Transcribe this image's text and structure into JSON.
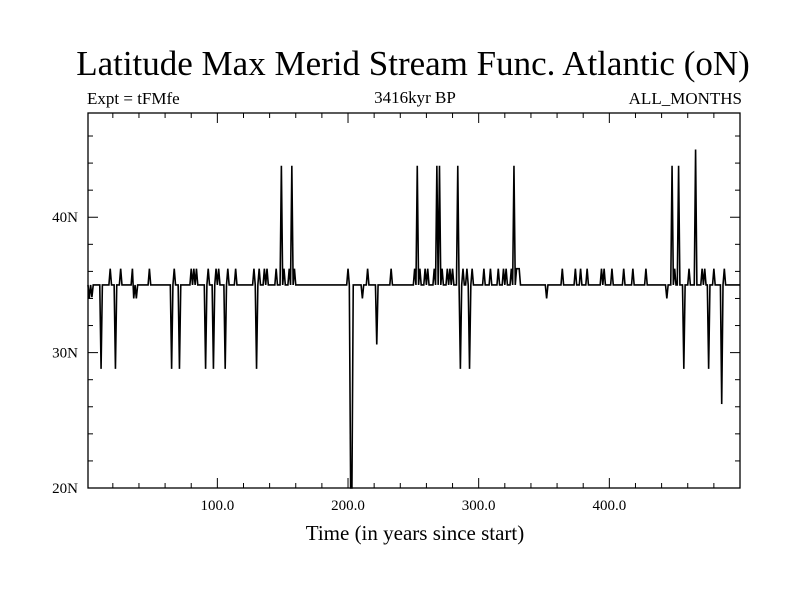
{
  "chart_data": {
    "type": "line",
    "title": "Latitude Max Merid Stream Func. Atlantic (oN)",
    "subtitle_left": "Expt = tFMfe",
    "subtitle_center": "3416kyr BP",
    "subtitle_right": "ALL_MONTHS",
    "xlabel": "Time (in years since start)",
    "ylabel": "",
    "xlim": [
      1,
      500
    ],
    "ylim": [
      20,
      47.7
    ],
    "x_ticks": [
      100,
      200,
      300,
      400
    ],
    "x_tick_labels": [
      "100.0",
      "200.0",
      "300.0",
      "400.0"
    ],
    "y_ticks": [
      20,
      30,
      40
    ],
    "y_tick_labels": [
      "20N",
      "30N",
      "40N"
    ],
    "grid": false,
    "color": "#000000",
    "baseline": 35,
    "series": [
      {
        "points": [
          [
            1,
            35
          ],
          [
            2,
            34
          ],
          [
            3,
            35
          ],
          [
            4,
            34.1
          ],
          [
            5,
            35
          ],
          [
            10,
            35
          ],
          [
            11,
            28.8
          ],
          [
            12,
            35
          ],
          [
            17,
            35
          ],
          [
            18,
            36.2
          ],
          [
            19,
            35
          ],
          [
            21,
            35
          ],
          [
            22,
            28.8
          ],
          [
            23,
            35
          ],
          [
            25,
            35
          ],
          [
            26,
            36.2
          ],
          [
            27,
            35
          ],
          [
            34,
            35
          ],
          [
            35,
            36.2
          ],
          [
            36,
            34
          ],
          [
            37,
            35
          ],
          [
            38,
            34
          ],
          [
            39,
            35
          ],
          [
            47,
            35
          ],
          [
            48,
            36.2
          ],
          [
            49,
            35
          ],
          [
            64,
            35
          ],
          [
            65,
            28.8
          ],
          [
            66,
            35
          ],
          [
            67,
            36.2
          ],
          [
            68,
            35
          ],
          [
            70,
            35
          ],
          [
            71,
            28.8
          ],
          [
            72,
            35
          ],
          [
            79,
            35
          ],
          [
            80,
            36.2
          ],
          [
            81,
            35
          ],
          [
            82,
            36.2
          ],
          [
            83,
            35
          ],
          [
            84,
            36.2
          ],
          [
            85,
            35
          ],
          [
            90,
            35
          ],
          [
            91,
            28.8
          ],
          [
            92,
            35
          ],
          [
            93,
            36.2
          ],
          [
            94,
            35
          ],
          [
            96,
            35
          ],
          [
            97,
            28.8
          ],
          [
            98,
            35
          ],
          [
            99,
            36.2
          ],
          [
            100,
            35
          ],
          [
            101,
            36.2
          ],
          [
            102,
            35
          ],
          [
            105,
            35
          ],
          [
            106,
            28.8
          ],
          [
            107,
            35
          ],
          [
            108,
            36.2
          ],
          [
            109,
            35
          ],
          [
            113,
            35
          ],
          [
            114,
            36.2
          ],
          [
            115,
            35
          ],
          [
            127,
            35
          ],
          [
            128,
            36.2
          ],
          [
            129,
            35
          ],
          [
            130,
            28.8
          ],
          [
            131,
            35
          ],
          [
            132,
            36.2
          ],
          [
            133,
            35
          ],
          [
            135,
            35
          ],
          [
            136,
            36.2
          ],
          [
            137,
            35
          ],
          [
            138,
            36.2
          ],
          [
            139,
            35
          ],
          [
            144,
            35
          ],
          [
            145,
            36.2
          ],
          [
            146,
            35
          ],
          [
            148,
            35
          ],
          [
            149,
            43.8
          ],
          [
            150,
            35
          ],
          [
            151,
            36.2
          ],
          [
            152,
            35
          ],
          [
            154,
            35
          ],
          [
            155,
            36.2
          ],
          [
            156,
            35
          ],
          [
            157,
            43.8
          ],
          [
            158,
            35
          ],
          [
            159,
            36.2
          ],
          [
            160,
            35
          ],
          [
            199,
            35
          ],
          [
            200,
            36.2
          ],
          [
            201,
            35
          ],
          [
            202,
            20
          ],
          [
            203,
            20
          ],
          [
            204,
            35
          ],
          [
            210,
            35
          ],
          [
            211,
            34
          ],
          [
            212,
            35
          ],
          [
            214,
            35
          ],
          [
            215,
            36.2
          ],
          [
            216,
            35
          ],
          [
            221,
            35
          ],
          [
            222,
            30.6
          ],
          [
            223,
            35
          ],
          [
            232,
            35
          ],
          [
            233,
            36.2
          ],
          [
            234,
            35
          ],
          [
            250,
            35
          ],
          [
            251,
            36.2
          ],
          [
            252,
            35
          ],
          [
            253,
            43.8
          ],
          [
            254,
            35
          ],
          [
            255,
            36.2
          ],
          [
            256,
            35
          ],
          [
            258,
            35
          ],
          [
            259,
            36.2
          ],
          [
            260,
            35
          ],
          [
            261,
            36.2
          ],
          [
            262,
            35
          ],
          [
            265,
            35
          ],
          [
            266,
            36.2
          ],
          [
            267,
            35
          ],
          [
            268,
            43.8
          ],
          [
            269,
            35
          ],
          [
            270,
            43.8
          ],
          [
            271,
            35
          ],
          [
            272,
            36.2
          ],
          [
            273,
            35
          ],
          [
            275,
            35
          ],
          [
            276,
            36.2
          ],
          [
            277,
            35
          ],
          [
            278,
            36.2
          ],
          [
            279,
            35
          ],
          [
            280,
            36.2
          ],
          [
            281,
            35
          ],
          [
            283,
            35
          ],
          [
            284,
            43.8
          ],
          [
            285,
            35
          ],
          [
            286,
            28.8
          ],
          [
            287,
            35
          ],
          [
            288,
            36.2
          ],
          [
            289,
            35
          ],
          [
            290,
            35
          ],
          [
            291,
            36.2
          ],
          [
            292,
            35
          ],
          [
            293,
            28.8
          ],
          [
            294,
            35
          ],
          [
            295,
            36.2
          ],
          [
            296,
            35
          ],
          [
            303,
            35
          ],
          [
            304,
            36.2
          ],
          [
            305,
            35
          ],
          [
            308,
            35
          ],
          [
            309,
            36.2
          ],
          [
            310,
            35
          ],
          [
            314,
            35
          ],
          [
            315,
            36.2
          ],
          [
            316,
            35
          ],
          [
            318,
            35
          ],
          [
            319,
            36.2
          ],
          [
            320,
            35
          ],
          [
            321,
            36.2
          ],
          [
            322,
            35
          ],
          [
            324,
            35
          ],
          [
            325,
            36.2
          ],
          [
            326,
            35
          ],
          [
            327,
            43.8
          ],
          [
            328,
            35
          ],
          [
            329,
            36.2
          ],
          [
            331,
            36.2
          ],
          [
            332,
            35
          ],
          [
            351,
            35
          ],
          [
            352,
            34
          ],
          [
            353,
            35
          ],
          [
            363,
            35
          ],
          [
            364,
            36.2
          ],
          [
            365,
            35
          ],
          [
            373,
            35
          ],
          [
            374,
            36.2
          ],
          [
            375,
            35
          ],
          [
            377,
            35
          ],
          [
            378,
            36.2
          ],
          [
            379,
            35
          ],
          [
            382,
            35
          ],
          [
            383,
            36.2
          ],
          [
            384,
            35
          ],
          [
            393,
            35
          ],
          [
            394,
            36.2
          ],
          [
            395,
            35
          ],
          [
            396,
            36.2
          ],
          [
            397,
            35
          ],
          [
            401,
            35
          ],
          [
            402,
            36.2
          ],
          [
            403,
            35
          ],
          [
            410,
            35
          ],
          [
            411,
            36.2
          ],
          [
            412,
            35
          ],
          [
            417,
            35
          ],
          [
            418,
            36.2
          ],
          [
            419,
            35
          ],
          [
            427,
            35
          ],
          [
            428,
            36.2
          ],
          [
            429,
            35
          ],
          [
            443,
            35
          ],
          [
            444,
            34
          ],
          [
            445,
            35
          ],
          [
            447,
            35
          ],
          [
            448,
            43.8
          ],
          [
            449,
            35
          ],
          [
            450,
            36.2
          ],
          [
            451,
            35
          ],
          [
            452,
            35
          ],
          [
            453,
            43.8
          ],
          [
            454,
            35
          ],
          [
            456,
            35
          ],
          [
            457,
            28.8
          ],
          [
            458,
            35
          ],
          [
            460,
            35
          ],
          [
            461,
            36.2
          ],
          [
            462,
            35
          ],
          [
            465,
            35
          ],
          [
            466,
            45
          ],
          [
            467,
            35
          ],
          [
            470,
            35
          ],
          [
            471,
            36.2
          ],
          [
            472,
            35
          ],
          [
            473,
            36.2
          ],
          [
            474,
            35
          ],
          [
            475,
            35
          ],
          [
            476,
            28.8
          ],
          [
            477,
            35
          ],
          [
            479,
            35
          ],
          [
            480,
            36.2
          ],
          [
            481,
            35
          ],
          [
            485,
            35
          ],
          [
            486,
            26.2
          ],
          [
            487,
            35
          ],
          [
            488,
            36.2
          ],
          [
            489,
            35
          ],
          [
            500,
            35
          ]
        ]
      }
    ]
  }
}
